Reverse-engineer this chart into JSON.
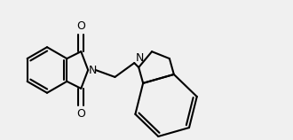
{
  "bg_color": "#f0f0f0",
  "line_color": "#000000",
  "line_width": 1.5,
  "font_size": 9,
  "figsize": [
    3.3,
    1.58
  ],
  "dpi": 100,
  "xlim": [
    0,
    33
  ],
  "ylim": [
    0,
    15.8
  ]
}
